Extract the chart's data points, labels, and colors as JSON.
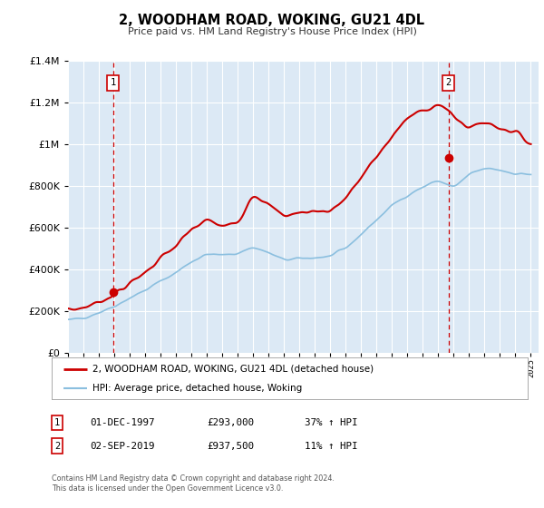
{
  "title": "2, WOODHAM ROAD, WOKING, GU21 4DL",
  "subtitle": "Price paid vs. HM Land Registry's House Price Index (HPI)",
  "legend_line1": "2, WOODHAM ROAD, WOKING, GU21 4DL (detached house)",
  "legend_line2": "HPI: Average price, detached house, Woking",
  "footnote1": "Contains HM Land Registry data © Crown copyright and database right 2024.",
  "footnote2": "This data is licensed under the Open Government Licence v3.0.",
  "sale1_date": "01-DEC-1997",
  "sale1_price": "£293,000",
  "sale1_hpi": "37% ↑ HPI",
  "sale2_date": "02-SEP-2019",
  "sale2_price": "£937,500",
  "sale2_hpi": "11% ↑ HPI",
  "sale1_year": 1997.92,
  "sale1_value": 293000,
  "sale2_year": 2019.67,
  "sale2_value": 937500,
  "hpi_color": "#8bbfdf",
  "price_color": "#cc0000",
  "marker_color": "#cc0000",
  "vline_color": "#cc0000",
  "plot_bg_color": "#dce9f5",
  "grid_color": "#ffffff",
  "ylim": [
    0,
    1400000
  ],
  "xlim_start": 1995.0,
  "xlim_end": 2025.5,
  "hpi_knots_x": [
    1995,
    1996,
    1997,
    1998,
    1999,
    2000,
    2001,
    2002,
    2003,
    2004,
    2005,
    2006,
    2007,
    2008,
    2009,
    2010,
    2011,
    2012,
    2013,
    2014,
    2015,
    2016,
    2017,
    2018,
    2019,
    2020,
    2021,
    2022,
    2023,
    2024,
    2025
  ],
  "hpi_knots_y": [
    155000,
    170000,
    195000,
    225000,
    265000,
    300000,
    345000,
    385000,
    440000,
    475000,
    468000,
    478000,
    510000,
    480000,
    445000,
    452000,
    458000,
    462000,
    500000,
    570000,
    638000,
    708000,
    758000,
    795000,
    830000,
    790000,
    855000,
    885000,
    878000,
    860000,
    858000
  ],
  "price_knots_x": [
    1995,
    1996,
    1997,
    1998,
    1999,
    2000,
    2001,
    2002,
    2003,
    2004,
    2005,
    2006,
    2007,
    2008,
    2009,
    2010,
    2011,
    2012,
    2013,
    2014,
    2015,
    2016,
    2017,
    2018,
    2019,
    2020,
    2021,
    2022,
    2023,
    2024,
    2025
  ],
  "price_knots_y": [
    205000,
    218000,
    245000,
    285000,
    330000,
    390000,
    455000,
    510000,
    590000,
    640000,
    605000,
    622000,
    778000,
    705000,
    658000,
    672000,
    682000,
    682000,
    742000,
    840000,
    940000,
    1040000,
    1125000,
    1165000,
    1200000,
    1130000,
    1080000,
    1110000,
    1082000,
    1060000,
    1005000
  ]
}
